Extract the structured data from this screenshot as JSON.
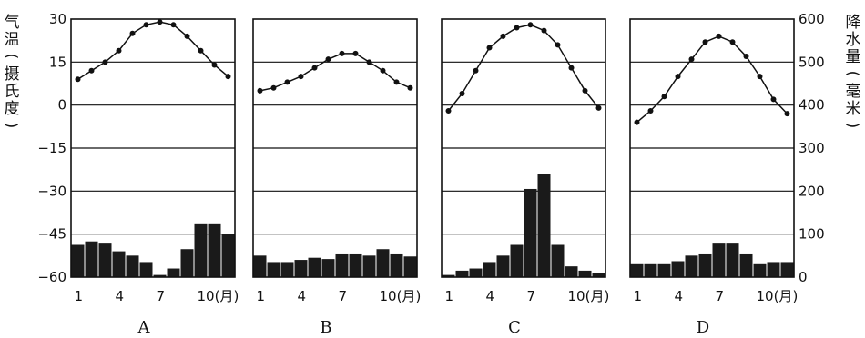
{
  "chart_data": {
    "type": "climate-chart",
    "left_axis": {
      "label_chars": [
        "气",
        "温",
        "(",
        "摄",
        "氏",
        "度",
        ")"
      ],
      "ticks": [
        30,
        15,
        0,
        -15,
        -30,
        -45,
        -60
      ],
      "range": [
        -60,
        30
      ]
    },
    "right_axis": {
      "label_chars": [
        "降",
        "水",
        "量",
        "(",
        "毫",
        "米",
        ")"
      ],
      "ticks": [
        600,
        500,
        400,
        300,
        200,
        100,
        0
      ],
      "range": [
        0,
        600
      ]
    },
    "x_tick_labels": [
      "1",
      "4",
      "7",
      "10(月)"
    ],
    "x_tick_months": [
      1,
      4,
      7,
      10
    ],
    "panels": [
      {
        "label": "A",
        "temperature": [
          9,
          12,
          15,
          19,
          25,
          28,
          29,
          28,
          24,
          19,
          14,
          10
        ],
        "precipitation": [
          75,
          83,
          80,
          60,
          50,
          35,
          5,
          20,
          65,
          125,
          125,
          100
        ]
      },
      {
        "label": "B",
        "temperature": [
          5,
          6,
          8,
          10,
          13,
          16,
          18,
          18,
          15,
          12,
          8,
          6
        ],
        "precipitation": [
          50,
          35,
          35,
          40,
          45,
          42,
          55,
          55,
          50,
          65,
          55,
          48
        ]
      },
      {
        "label": "C",
        "temperature": [
          -2,
          4,
          12,
          20,
          24,
          27,
          28,
          26,
          21,
          13,
          5,
          -1
        ],
        "precipitation": [
          5,
          15,
          20,
          35,
          50,
          75,
          205,
          240,
          75,
          25,
          15,
          10
        ]
      },
      {
        "label": "D",
        "temperature": [
          -6,
          -2,
          3,
          10,
          16,
          22,
          24,
          22,
          17,
          10,
          2,
          -3
        ],
        "precipitation": [
          30,
          30,
          30,
          37,
          50,
          55,
          80,
          80,
          55,
          30,
          35,
          35
        ]
      }
    ]
  }
}
